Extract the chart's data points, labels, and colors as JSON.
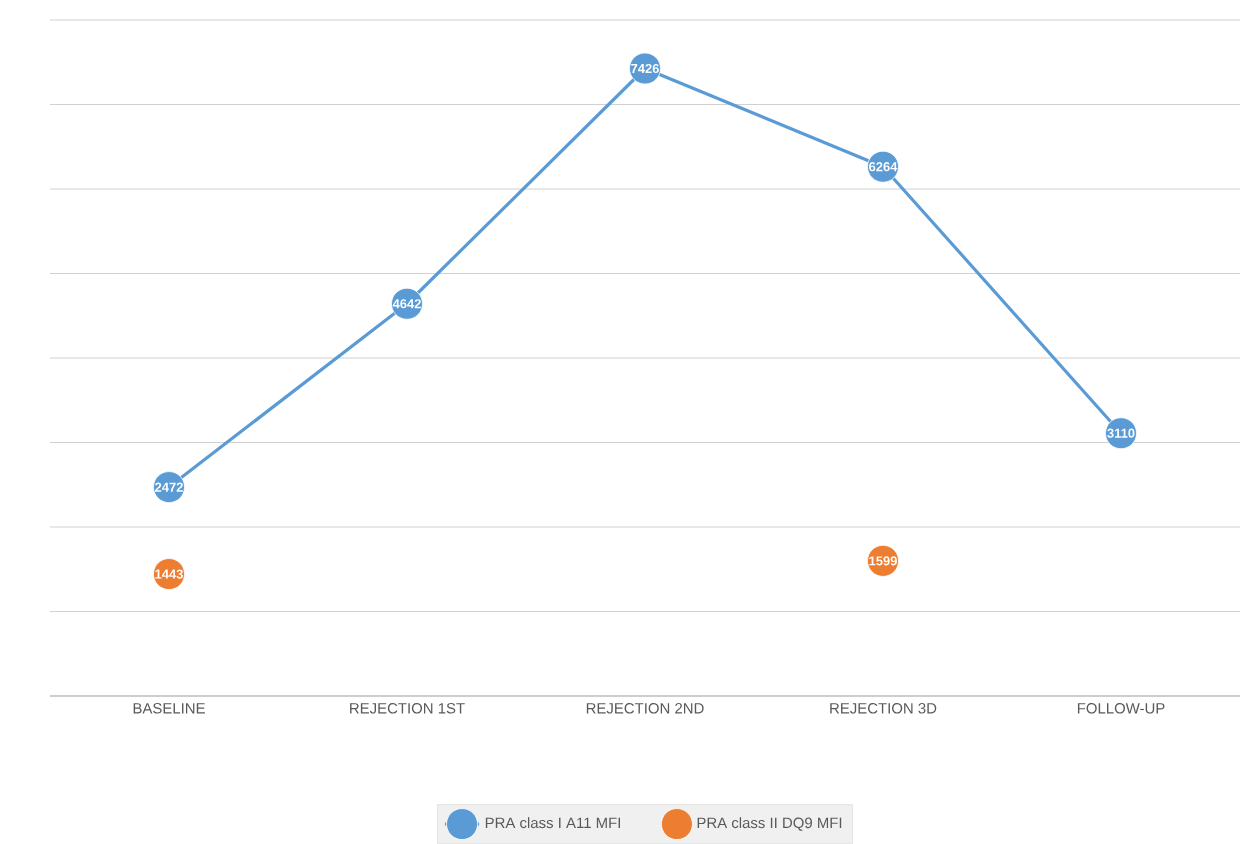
{
  "chart_data": {
    "type": "line",
    "categories": [
      "BASELINE",
      "REJECTION 1ST",
      "REJECTION 2ND",
      "REJECTION 3D",
      "FOLLOW-UP"
    ],
    "series": [
      {
        "name": "PRA class I A11 MFI",
        "color": "#5b9bd5",
        "values": [
          2472,
          4642,
          7426,
          6264,
          3110
        ]
      },
      {
        "name": "PRA class II DQ9 MFI",
        "type": "scatter",
        "color": "#ed7d31",
        "values": [
          1443,
          null,
          null,
          1599,
          null
        ]
      }
    ],
    "ylim": [
      0,
      8000
    ],
    "yticks": [
      {
        "value": 0,
        "label": null
      },
      {
        "value": 1000,
        "label": null
      },
      {
        "value": 2000,
        "label": null
      },
      {
        "value": 3000,
        "label": null
      },
      {
        "value": 4000,
        "label": null
      },
      {
        "value": 5000,
        "label": null
      },
      {
        "value": 6000,
        "label": null
      },
      {
        "value": 7000,
        "label": null
      },
      {
        "value": 8000,
        "label": null
      }
    ],
    "tick_labels": "x",
    "grid": "y",
    "legend": "bottom",
    "marker": "circle",
    "line_style": "solid",
    "data_labels": true
  }
}
